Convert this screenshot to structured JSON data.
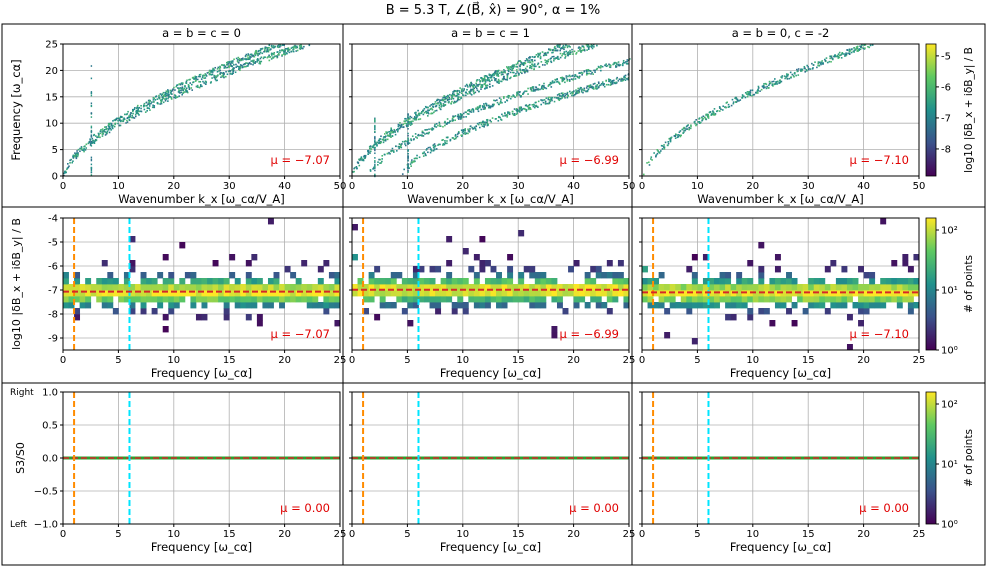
{
  "title": "B = 5.3 T,  ∠(B⃗, x̂) = 90°,  α = 1%",
  "columns": [
    "a = b = c = 0",
    "a = b = c = 1",
    "a = b = 0, c = -2"
  ],
  "colors": {
    "orange_line": "#ff8c00",
    "cyan_line": "#00e5ff",
    "mean_line": "#d62728",
    "mu_text": "#e00000",
    "flat_line": "#2ca02c"
  },
  "chart_data": [
    {
      "type": "heatmap",
      "row": "dispersion",
      "xlabel": "Wavenumber k_x [ω_cα/V_A]",
      "ylabel": "Frequency [ω_cα]",
      "xlim": [
        0,
        50
      ],
      "ylim": [
        0,
        25
      ],
      "xticks": [
        "0",
        "10",
        "20",
        "30",
        "40",
        "50"
      ],
      "yticks": [
        "0",
        "5",
        "10",
        "15",
        "20",
        "25"
      ],
      "colorbar": {
        "label": "log10 |δB_x + iδB_y| / B",
        "ticks": [
          "-5",
          "-6",
          "-7",
          "-8"
        ],
        "range": [
          -8.8,
          -4.6
        ]
      },
      "mu_labels": [
        "μ = −7.07",
        "μ = −6.99",
        "μ = −7.10"
      ],
      "branches": [
        [
          {
            "k0": 0,
            "w0": 0,
            "k1": 45,
            "w1": 25.5
          },
          {
            "k0": 0,
            "w0": 0,
            "k1": 40,
            "w1": 25.5
          }
        ],
        [
          {
            "k0": 0,
            "w0": 0,
            "k1": 45,
            "w1": 25.5
          },
          {
            "k0": 0,
            "w0": 0,
            "k1": 40,
            "w1": 25.5
          },
          {
            "k0": 3,
            "w0": 0,
            "k1": 50,
            "w1": 22
          },
          {
            "k0": 9,
            "w0": 0,
            "k1": 50,
            "w1": 19
          }
        ],
        [
          {
            "k0": 0,
            "w0": 0,
            "k1": 42,
            "w1": 25.5
          }
        ]
      ],
      "spikes": [
        [
          5
        ],
        [
          4,
          10
        ],
        []
      ]
    },
    {
      "type": "heatmap",
      "row": "amplitude_vs_frequency",
      "xlabel": "Frequency [ω_cα]",
      "ylabel": "log10 |δB_x + iδB_y| / B",
      "xlim": [
        0,
        25
      ],
      "ylim": [
        -9.5,
        -4
      ],
      "xticks": [
        "0",
        "5",
        "10",
        "15",
        "20",
        "25"
      ],
      "yticks": [
        "-4",
        "-5",
        "-6",
        "-7",
        "-8",
        "-9"
      ],
      "colorbar": {
        "label": "# of points",
        "ticks": [
          "10²",
          "10¹",
          "10⁰"
        ],
        "range": [
          0,
          2.3
        ]
      },
      "mean_values": [
        -7.07,
        -6.99,
        -7.1
      ],
      "vlines": {
        "orange": 1,
        "cyan": 6
      },
      "mu_labels": [
        "μ = −7.07",
        "μ = −6.99",
        "μ = −7.10"
      ]
    },
    {
      "type": "line",
      "row": "polarization",
      "xlabel": "Frequency [ω_cα]",
      "ylabel": "S3/S0",
      "xlim": [
        0,
        25
      ],
      "ylim": [
        -1,
        1
      ],
      "xticks": [
        "0",
        "5",
        "10",
        "15",
        "20",
        "25"
      ],
      "yticks": [
        "1.0",
        "0.5",
        "0.0",
        "−0.5",
        "−1.0"
      ],
      "ytick_extra": {
        "top": "Right",
        "bottom": "Left"
      },
      "series_value": 0,
      "vlines": {
        "orange": 1,
        "cyan": 6
      },
      "colorbar": {
        "label": "# of points",
        "ticks": [
          "10²",
          "10¹",
          "10⁰"
        ],
        "range": [
          0,
          2.8
        ]
      },
      "mu_labels": [
        "μ = 0.00",
        "μ = 0.00",
        "μ = 0.00"
      ]
    }
  ]
}
